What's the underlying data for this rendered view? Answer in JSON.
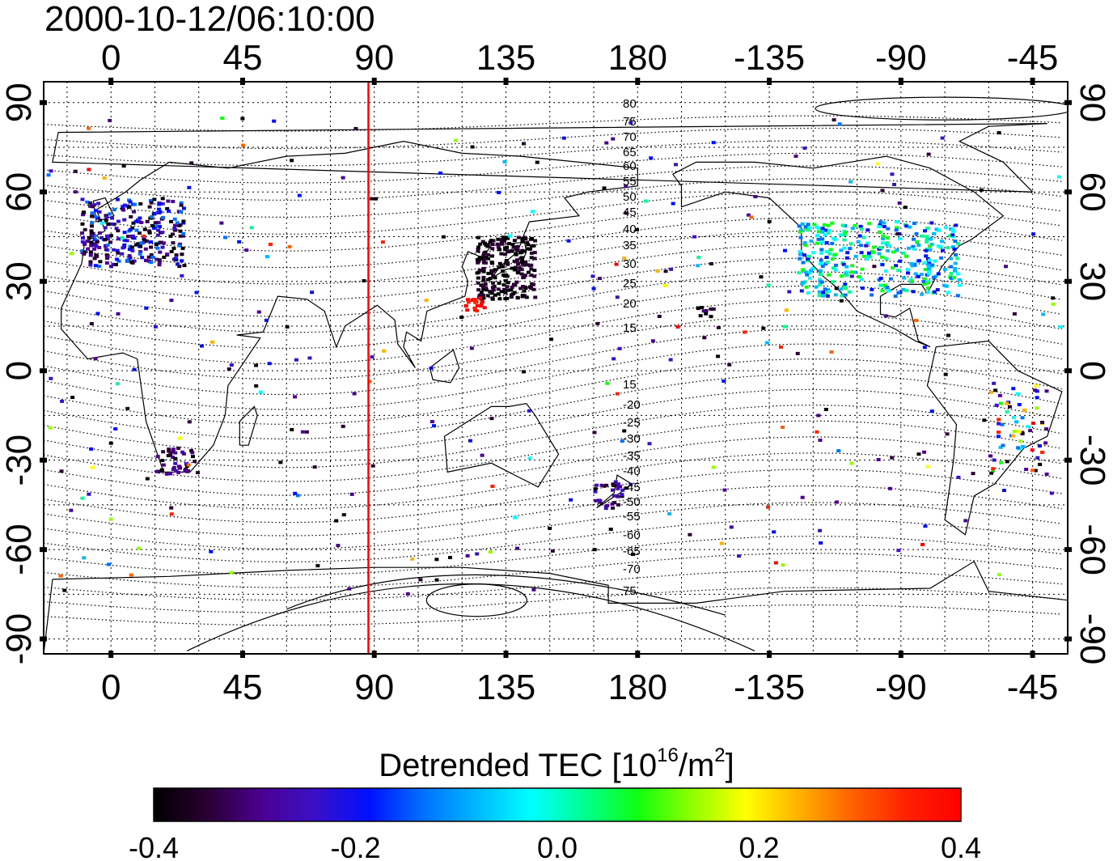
{
  "title": "2000-10-12/06:10:00",
  "map": {
    "x_ticks_top": [
      "0",
      "45",
      "90",
      "135",
      "180",
      "-135",
      "-90",
      "-45"
    ],
    "x_ticks_bottom": [
      "0",
      "45",
      "90",
      "135",
      "180",
      "-135",
      "-90",
      "-45"
    ],
    "y_ticks_left": [
      "90",
      "60",
      "30",
      "0",
      "-30",
      "-60",
      "-90"
    ],
    "y_ticks_right": [
      "90",
      "60",
      "30",
      "0",
      "-30",
      "-60",
      "-90"
    ],
    "x_tick_values": [
      0,
      45,
      90,
      135,
      180,
      225,
      270,
      315
    ],
    "y_tick_values": [
      90,
      60,
      30,
      0,
      -30,
      -60,
      -90
    ],
    "lon_range": [
      -23,
      327
    ],
    "lat_range": [
      -95,
      97
    ],
    "terminator_lon": 88,
    "terminator_color": "#ff0000",
    "mag_lat_labels_north": [
      "80",
      "75",
      "70",
      "65",
      "60",
      "55",
      "50",
      "45",
      "40",
      "35",
      "30",
      "25",
      "20",
      "15"
    ],
    "mag_lat_labels_south": [
      "15",
      "-20",
      "-25",
      "-30",
      "-35",
      "-40",
      "-45",
      "-50",
      "-55",
      "-60",
      "-65",
      "-70",
      "75"
    ]
  },
  "colorbar": {
    "title_main": "Detrended TEC  [10",
    "title_exp": "16",
    "title_unit": "/m",
    "title_exp2": "2",
    "title_end": "]",
    "ticks": [
      "-0.4",
      "-0.2",
      "0.0",
      "0.2",
      "0.4"
    ],
    "tick_values": [
      -0.4,
      -0.2,
      0.0,
      0.2,
      0.4
    ],
    "range": [
      -0.4,
      0.4
    ],
    "colors": [
      "#000000",
      "#2a0033",
      "#4b0090",
      "#3a10c8",
      "#0010ff",
      "#0070ff",
      "#00b8ff",
      "#00ffff",
      "#00ff90",
      "#10ff10",
      "#90ff00",
      "#ffff00",
      "#ffb000",
      "#ff6000",
      "#ff2000",
      "#ff0000"
    ]
  },
  "chart_data": {
    "type": "scatter",
    "title": "2000-10-12/06:10:00",
    "xlabel": "",
    "ylabel": "",
    "xlim": [
      -23,
      327
    ],
    "ylim": [
      -95,
      97
    ],
    "colorbar_label": "Detrended TEC [10^16/m^2]",
    "colorbar_range": [
      -0.4,
      0.4
    ],
    "point_clusters": [
      {
        "region": "Europe",
        "lon": [
          -10,
          25
        ],
        "lat": [
          35,
          58
        ],
        "value_range": [
          -0.4,
          -0.1
        ]
      },
      {
        "region": "Japan",
        "lon": [
          125,
          145
        ],
        "lat": [
          24,
          45
        ],
        "value_range": [
          -0.4,
          -0.3
        ]
      },
      {
        "region": "Taiwan/Japan south",
        "lon": [
          121,
          128
        ],
        "lat": [
          20,
          25
        ],
        "value_range": [
          0.3,
          0.4
        ]
      },
      {
        "region": "North America",
        "lon": [
          235,
          290
        ],
        "lat": [
          25,
          50
        ],
        "value_range": [
          -0.2,
          0.1
        ]
      },
      {
        "region": "South Africa",
        "lon": [
          15,
          30
        ],
        "lat": [
          -35,
          -26
        ],
        "value_range": [
          -0.4,
          -0.2
        ]
      },
      {
        "region": "New Zealand",
        "lon": [
          165,
          178
        ],
        "lat": [
          -47,
          -37
        ],
        "value_range": [
          -0.4,
          -0.2
        ]
      },
      {
        "region": "Hawaii",
        "lon": [
          200,
          206
        ],
        "lat": [
          18,
          22
        ],
        "value_range": [
          -0.4,
          -0.3
        ]
      },
      {
        "region": "South America east",
        "lon": [
          300,
          320
        ],
        "lat": [
          -35,
          -5
        ],
        "value_range": [
          -0.4,
          0.4
        ]
      }
    ]
  }
}
